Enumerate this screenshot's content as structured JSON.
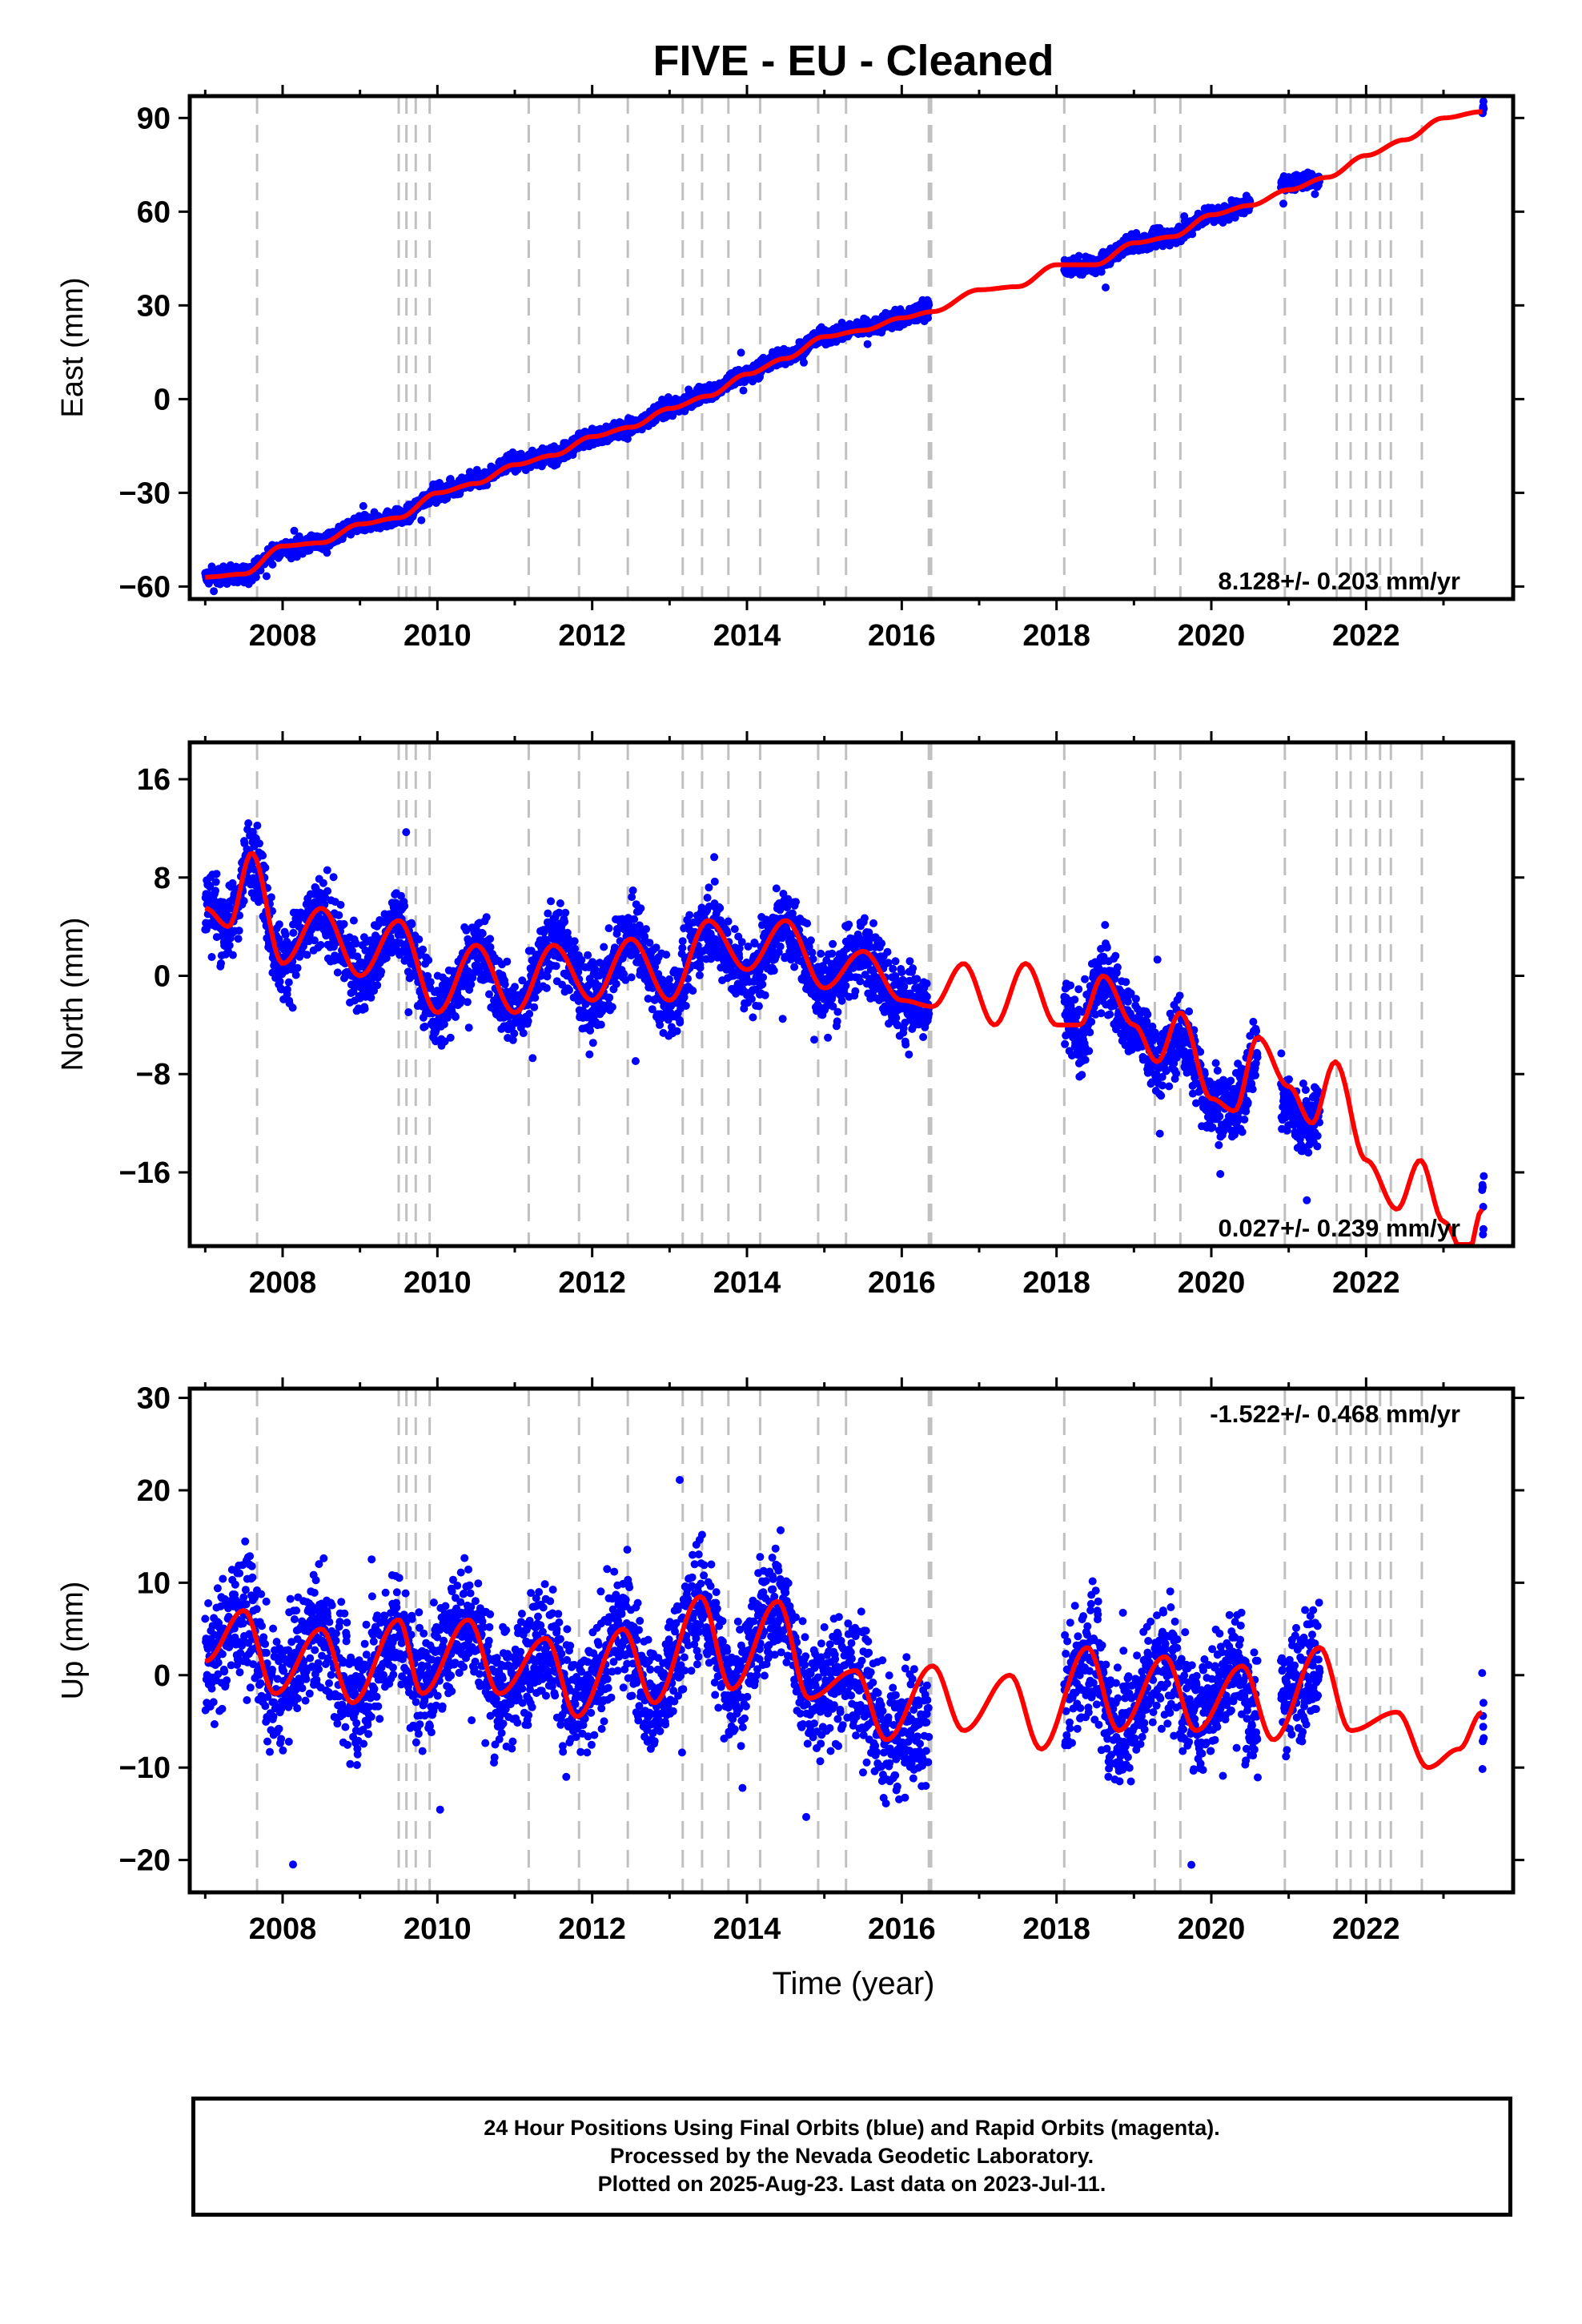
{
  "title": "FIVE  - EU - Cleaned",
  "xlabel": "Time (year)",
  "footer": {
    "line1": "24 Hour Positions Using Final Orbits (blue) and Rapid Orbits (magenta).",
    "line2": "Processed by the Nevada Geodetic Laboratory.",
    "line3": "Plotted on 2025-Aug-23. Last data on 2023-Jul-11."
  },
  "colors": {
    "data": "#0000ff",
    "model": "#ff0000",
    "steps": "#c0c0c0"
  },
  "chart_data": [
    {
      "type": "scatter",
      "component": "east",
      "ylabel": "East (mm)",
      "rate_label": "8.128+/- 0.203 mm/yr",
      "xlim": [
        2006.8,
        2023.9
      ],
      "ylim": [
        -64,
        97
      ],
      "x_ticks": [
        2008,
        2010,
        2012,
        2014,
        2016,
        2018,
        2020,
        2022
      ],
      "y_ticks": [
        -60,
        -30,
        0,
        30,
        60,
        90
      ],
      "grid": false,
      "step_lines": [
        2007.67,
        2009.5,
        2009.6,
        2009.72,
        2009.9,
        2011.18,
        2011.83,
        2012.46,
        2013.17,
        2013.42,
        2013.76,
        2014.17,
        2014.92,
        2015.28,
        2016.35,
        2016.38,
        2018.1,
        2019.27,
        2019.6,
        2020.95,
        2021.62,
        2021.8,
        2022.0,
        2022.18,
        2022.32,
        2022.72
      ],
      "data_segments": [
        {
          "x": [
            2007.0,
            2007.5,
            2008.0,
            2008.5,
            2009.0,
            2009.5,
            2010.0,
            2010.5,
            2011.0,
            2011.5,
            2012.0,
            2012.5,
            2013.0,
            2013.5,
            2014.0,
            2014.5,
            2015.0,
            2015.5,
            2016.0,
            2016.35
          ],
          "y": [
            -57,
            -56,
            -48,
            -46,
            -40,
            -38,
            -30,
            -26,
            -20,
            -18,
            -12,
            -9,
            -3,
            2,
            8,
            14,
            20,
            23,
            26,
            29
          ]
        },
        {
          "x": [
            2018.1,
            2018.5,
            2019.0,
            2019.5,
            2020.0,
            2020.5
          ],
          "y": [
            42,
            43,
            50,
            52,
            59,
            62
          ]
        },
        {
          "x": [
            2020.9,
            2021.4
          ],
          "y": [
            69,
            70
          ]
        },
        {
          "x": [
            2023.5,
            2023.52
          ],
          "y": [
            92,
            93
          ]
        }
      ],
      "model": {
        "x": [
          2007.0,
          2007.5,
          2008.0,
          2008.5,
          2009.0,
          2009.5,
          2010.0,
          2010.5,
          2011.0,
          2011.5,
          2012.0,
          2012.5,
          2013.0,
          2013.5,
          2014.0,
          2014.5,
          2015.0,
          2015.5,
          2016.0,
          2016.4,
          2017.0,
          2017.5,
          2018.0,
          2018.5,
          2019.0,
          2019.5,
          2020.0,
          2020.5,
          2021.0,
          2021.5,
          2022.0,
          2022.5,
          2023.0,
          2023.5
        ],
        "y": [
          -57,
          -56,
          -47,
          -46,
          -40,
          -38,
          -30,
          -27,
          -21,
          -18,
          -12,
          -9,
          -3,
          1,
          8,
          13,
          20,
          22,
          26,
          28,
          35,
          36,
          43,
          43,
          50,
          52,
          59,
          62,
          67,
          71,
          78,
          83,
          90,
          92
        ]
      }
    },
    {
      "type": "scatter",
      "component": "north",
      "ylabel": "North (mm)",
      "rate_label": "0.027+/- 0.239 mm/yr",
      "xlim": [
        2006.8,
        2023.9
      ],
      "ylim": [
        -22,
        19
      ],
      "x_ticks": [
        2008,
        2010,
        2012,
        2014,
        2016,
        2018,
        2020,
        2022
      ],
      "y_ticks": [
        -16,
        -8,
        0,
        8,
        16
      ],
      "grid": false,
      "step_lines": [
        2007.67,
        2009.5,
        2009.6,
        2009.72,
        2009.9,
        2011.18,
        2011.83,
        2012.46,
        2013.17,
        2013.42,
        2013.76,
        2014.17,
        2014.92,
        2015.28,
        2016.35,
        2016.38,
        2018.1,
        2019.27,
        2019.6,
        2020.95,
        2021.62,
        2021.8,
        2022.0,
        2022.18,
        2022.32,
        2022.72
      ],
      "data_segments": [
        {
          "x": [
            2007.0,
            2007.3,
            2007.6,
            2008.0,
            2008.5,
            2009.0,
            2009.5,
            2010.0,
            2010.5,
            2011.0,
            2011.5,
            2012.0,
            2012.5,
            2013.0,
            2013.5,
            2014.0,
            2014.5,
            2015.0,
            2015.5,
            2016.0,
            2016.35
          ],
          "y": [
            6,
            4,
            10,
            1,
            5,
            0,
            4,
            -3,
            2,
            -3,
            3,
            -2,
            3,
            -2,
            4,
            0,
            4,
            -1,
            2,
            -2,
            -3
          ]
        },
        {
          "x": [
            2018.1,
            2018.3,
            2018.6,
            2019.0,
            2019.3,
            2019.6,
            2020.0,
            2020.3,
            2020.6
          ],
          "y": [
            -3,
            -5,
            0,
            -4,
            -7,
            -5,
            -10,
            -11,
            -6
          ]
        },
        {
          "x": [
            2020.9,
            2021.2,
            2021.4
          ],
          "y": [
            -10,
            -12,
            -11
          ]
        },
        {
          "x": [
            2023.5,
            2023.52
          ],
          "y": [
            -17,
            -18
          ]
        }
      ],
      "model": {
        "x": [
          2007.0,
          2007.3,
          2007.6,
          2008.0,
          2008.5,
          2009.0,
          2009.5,
          2010.0,
          2010.5,
          2011.0,
          2011.5,
          2012.0,
          2012.5,
          2013.0,
          2013.5,
          2014.0,
          2014.5,
          2015.0,
          2015.5,
          2016.0,
          2016.4,
          2016.8,
          2017.2,
          2017.6,
          2018.0,
          2018.3,
          2018.6,
          2019.0,
          2019.3,
          2019.6,
          2020.0,
          2020.3,
          2020.6,
          2021.0,
          2021.3,
          2021.6,
          2022.0,
          2022.4,
          2022.7,
          2023.0,
          2023.3,
          2023.5
        ],
        "y": [
          5.5,
          4,
          10,
          1,
          5.5,
          0,
          4.5,
          -3,
          2.5,
          -3,
          2.5,
          -2,
          3,
          -2,
          4.5,
          0.5,
          4.5,
          -1,
          2,
          -2,
          -2.5,
          1,
          -4,
          1,
          -4,
          -4,
          0,
          -4,
          -7,
          -3,
          -10,
          -11,
          -5,
          -9,
          -12,
          -7,
          -15,
          -19,
          -15,
          -20,
          -23,
          -19
        ]
      }
    },
    {
      "type": "scatter",
      "component": "up",
      "ylabel": "Up (mm)",
      "rate_label": "-1.522+/- 0.468 mm/yr",
      "xlim": [
        2006.8,
        2023.9
      ],
      "ylim": [
        -23.5,
        31
      ],
      "x_ticks": [
        2008,
        2010,
        2012,
        2014,
        2016,
        2018,
        2020,
        2022
      ],
      "y_ticks": [
        -20,
        -10,
        0,
        10,
        20,
        30
      ],
      "grid": false,
      "step_lines": [
        2007.67,
        2009.5,
        2009.6,
        2009.72,
        2009.9,
        2011.18,
        2011.83,
        2012.46,
        2013.17,
        2013.42,
        2013.76,
        2014.17,
        2014.92,
        2015.28,
        2016.35,
        2016.38,
        2018.1,
        2019.27,
        2019.6,
        2020.95,
        2021.62,
        2021.8,
        2022.0,
        2022.18,
        2022.32,
        2022.72
      ],
      "data_segments": [
        {
          "x": [
            2007.0,
            2007.5,
            2007.9,
            2008.5,
            2008.9,
            2009.5,
            2009.8,
            2010.4,
            2010.8,
            2011.4,
            2011.8,
            2012.4,
            2012.8,
            2013.4,
            2013.8,
            2014.4,
            2014.8,
            2015.4,
            2015.8,
            2016.35
          ],
          "y": [
            1,
            7,
            -2,
            5,
            -3,
            5,
            -1,
            6,
            -2,
            4,
            -4,
            5,
            -3,
            8,
            -1,
            8,
            -2,
            0,
            -7,
            -6
          ]
        },
        {
          "x": [
            2018.1,
            2018.4,
            2018.8,
            2019.4,
            2019.8,
            2020.3,
            2020.6
          ],
          "y": [
            -2,
            2,
            -6,
            2,
            -5,
            1,
            -5
          ]
        },
        {
          "x": [
            2020.9,
            2021.4
          ],
          "y": [
            -2,
            2
          ]
        },
        {
          "x": [
            2023.5,
            2023.52
          ],
          "y": [
            -4,
            -3
          ]
        }
      ],
      "model": {
        "x": [
          2007.0,
          2007.5,
          2007.9,
          2008.5,
          2008.9,
          2009.5,
          2009.8,
          2010.4,
          2010.8,
          2011.4,
          2011.8,
          2012.4,
          2012.8,
          2013.4,
          2013.8,
          2014.4,
          2014.8,
          2015.4,
          2015.8,
          2016.4,
          2016.8,
          2017.4,
          2017.8,
          2018.4,
          2018.8,
          2019.4,
          2019.8,
          2020.4,
          2020.8,
          2021.4,
          2021.8,
          2022.4,
          2022.8,
          2023.2,
          2023.5
        ],
        "y": [
          1.5,
          7,
          -2,
          5,
          -3,
          6,
          -2,
          6,
          -2,
          4,
          -4.5,
          5,
          -3,
          8.5,
          -1.5,
          8,
          -2.5,
          0.5,
          -7,
          1,
          -6,
          0,
          -8,
          3,
          -6,
          2,
          -6,
          1,
          -7,
          3,
          -6,
          -4,
          -10,
          -8,
          -4
        ]
      }
    }
  ]
}
